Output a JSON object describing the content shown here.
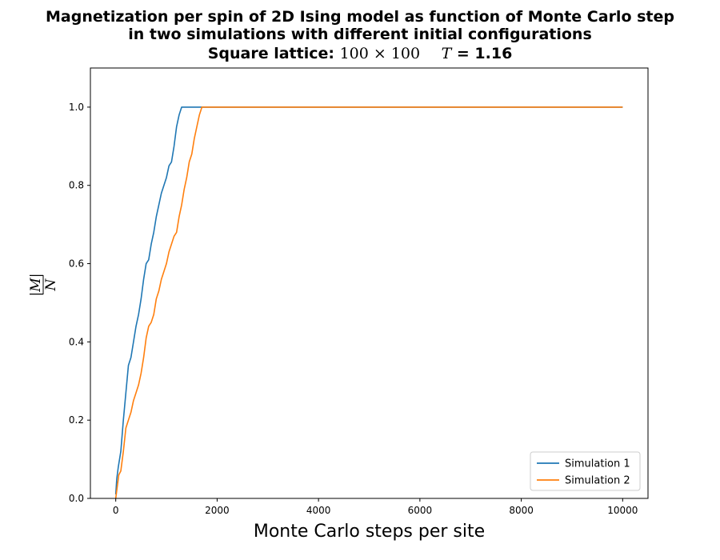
{
  "chart_data": {
    "type": "line",
    "title": {
      "line1": "Magnetization per spin of 2D Ising model as function of Monte Carlo step",
      "line2": "in two simulations with different initial configurations",
      "line3_prefix": "Square lattice:",
      "lattice_size": "100 × 100",
      "temp_symbol": "T",
      "temp_value": "= 1.16"
    },
    "xlabel": "Monte Carlo steps per site",
    "ylabel": {
      "numerator": "|M|",
      "denominator": "N"
    },
    "xlim": [
      -500,
      10500
    ],
    "ylim": [
      0.0,
      1.1
    ],
    "xticks": [
      "0",
      "2000",
      "4000",
      "6000",
      "8000",
      "10000"
    ],
    "xtick_values": [
      0,
      2000,
      4000,
      6000,
      8000,
      10000
    ],
    "yticks": [
      "0.0",
      "0.2",
      "0.4",
      "0.6",
      "0.8",
      "1.0"
    ],
    "ytick_values": [
      0.0,
      0.2,
      0.4,
      0.6,
      0.8,
      1.0
    ],
    "grid": false,
    "legend_position": "lower right",
    "series": [
      {
        "name": "Simulation 1",
        "color": "#1f77b4",
        "x": [
          0,
          20,
          50,
          100,
          150,
          200,
          250,
          300,
          350,
          400,
          450,
          500,
          550,
          600,
          650,
          700,
          750,
          800,
          850,
          900,
          950,
          1000,
          1050,
          1100,
          1150,
          1200,
          1250,
          1300,
          1350,
          1400,
          1500,
          2000,
          4000,
          6000,
          8000,
          10000
        ],
        "y": [
          0.01,
          0.05,
          0.08,
          0.12,
          0.2,
          0.27,
          0.34,
          0.36,
          0.4,
          0.44,
          0.47,
          0.51,
          0.56,
          0.6,
          0.61,
          0.65,
          0.68,
          0.72,
          0.75,
          0.78,
          0.8,
          0.82,
          0.85,
          0.86,
          0.9,
          0.95,
          0.98,
          1.0,
          1.0,
          1.0,
          1.0,
          1.0,
          1.0,
          1.0,
          1.0,
          1.0
        ]
      },
      {
        "name": "Simulation 2",
        "color": "#ff7f0e",
        "x": [
          0,
          30,
          60,
          100,
          150,
          200,
          250,
          300,
          350,
          400,
          450,
          500,
          550,
          600,
          650,
          700,
          750,
          800,
          850,
          900,
          950,
          1000,
          1050,
          1100,
          1150,
          1200,
          1250,
          1300,
          1350,
          1400,
          1450,
          1500,
          1550,
          1600,
          1650,
          1700,
          1800,
          2000,
          4000,
          6000,
          8000,
          10000
        ],
        "y": [
          0.0,
          0.03,
          0.06,
          0.07,
          0.12,
          0.18,
          0.2,
          0.22,
          0.25,
          0.27,
          0.29,
          0.32,
          0.36,
          0.41,
          0.44,
          0.45,
          0.47,
          0.51,
          0.53,
          0.56,
          0.58,
          0.6,
          0.63,
          0.65,
          0.67,
          0.68,
          0.72,
          0.75,
          0.79,
          0.82,
          0.86,
          0.88,
          0.92,
          0.95,
          0.98,
          1.0,
          1.0,
          1.0,
          1.0,
          1.0,
          1.0,
          1.0
        ]
      }
    ]
  }
}
